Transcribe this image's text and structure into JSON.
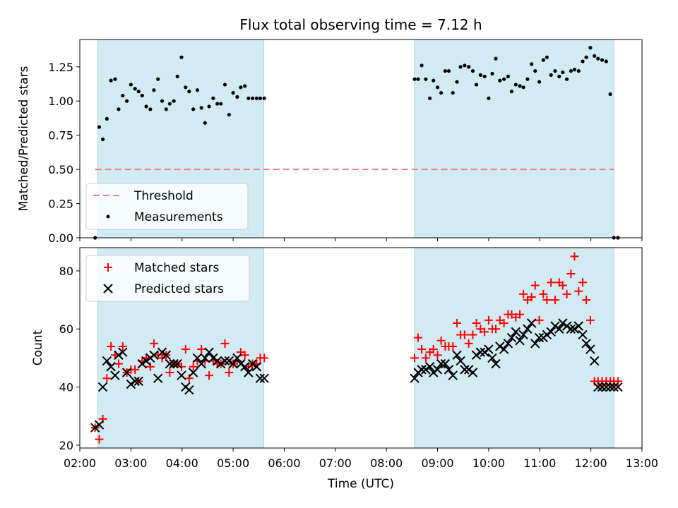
{
  "chart_data": [
    {
      "type": "scatter",
      "title": "Flux total observing time = 7.12 h",
      "ylabel": "Matched/Predicted stars",
      "ylim": [
        0.0,
        1.45
      ],
      "yticks": [
        "0.00",
        "0.25",
        "0.50",
        "0.75",
        "1.00",
        "1.25"
      ],
      "threshold": {
        "name": "Threshold",
        "value": 0.5,
        "x_start": 2.3,
        "x_end": 12.45,
        "color": "#f08080"
      },
      "shaded_regions": [
        [
          2.35,
          5.6
        ],
        [
          8.55,
          12.45
        ]
      ],
      "shade_color": "#add8e6",
      "series": [
        {
          "name": "Measurements",
          "marker": "dot",
          "color": "#000000",
          "x": [
            2.3,
            2.38,
            2.45,
            2.53,
            2.61,
            2.69,
            2.76,
            2.84,
            2.92,
            3.0,
            3.08,
            3.15,
            3.22,
            3.3,
            3.38,
            3.45,
            3.53,
            3.61,
            3.69,
            3.76,
            3.84,
            3.91,
            3.99,
            4.07,
            4.14,
            4.22,
            4.3,
            4.38,
            4.45,
            4.53,
            4.61,
            4.69,
            4.76,
            4.84,
            4.92,
            5.0,
            5.08,
            5.15,
            5.23,
            5.3,
            5.38,
            5.46,
            5.53,
            5.61,
            8.55,
            8.62,
            8.69,
            8.77,
            8.85,
            8.92,
            9.0,
            9.07,
            9.15,
            9.22,
            9.3,
            9.38,
            9.45,
            9.53,
            9.61,
            9.69,
            9.76,
            9.84,
            9.92,
            10.0,
            10.07,
            10.14,
            10.22,
            10.3,
            10.38,
            10.45,
            10.53,
            10.61,
            10.68,
            10.76,
            10.84,
            10.91,
            10.99,
            11.07,
            11.14,
            11.22,
            11.3,
            11.38,
            11.45,
            11.53,
            11.61,
            11.68,
            11.76,
            11.84,
            11.91,
            11.99,
            12.07,
            12.14,
            12.22,
            12.3,
            12.38,
            12.45,
            12.53
          ],
          "y": [
            0.0,
            0.81,
            0.72,
            0.87,
            1.15,
            1.16,
            0.94,
            1.04,
            1.0,
            1.12,
            1.09,
            1.07,
            1.04,
            0.96,
            0.94,
            1.08,
            1.16,
            1.0,
            0.94,
            0.98,
            1.0,
            1.18,
            1.32,
            1.1,
            1.07,
            0.94,
            1.08,
            0.95,
            0.84,
            0.96,
            1.02,
            0.98,
            0.98,
            1.12,
            0.9,
            1.06,
            1.03,
            1.1,
            1.11,
            1.02,
            1.02,
            1.02,
            1.02,
            1.02,
            1.16,
            1.16,
            1.26,
            1.16,
            1.02,
            1.15,
            1.1,
            1.06,
            1.22,
            1.22,
            1.06,
            1.14,
            1.25,
            1.26,
            1.25,
            1.22,
            1.12,
            1.19,
            1.18,
            1.02,
            1.2,
            1.31,
            1.15,
            1.16,
            1.18,
            1.07,
            1.12,
            1.11,
            1.1,
            1.16,
            1.27,
            1.22,
            1.14,
            1.3,
            1.32,
            1.19,
            1.22,
            1.18,
            1.21,
            1.16,
            1.22,
            1.23,
            1.22,
            1.29,
            1.32,
            1.39,
            1.33,
            1.31,
            1.3,
            1.29,
            1.05,
            0.0,
            0.0
          ]
        }
      ]
    },
    {
      "type": "scatter",
      "xlabel": "Time (UTC)",
      "ylabel": "Count",
      "xlim": [
        2.0,
        13.0
      ],
      "ylim": [
        19,
        88
      ],
      "xticks": [
        "02:00",
        "03:00",
        "04:00",
        "05:00",
        "06:00",
        "07:00",
        "08:00",
        "09:00",
        "10:00",
        "11:00",
        "12:00",
        "13:00"
      ],
      "yticks": [
        "20",
        "40",
        "60",
        "80"
      ],
      "shaded_regions": [
        [
          2.35,
          5.6
        ],
        [
          8.55,
          12.45
        ]
      ],
      "shade_color": "#add8e6",
      "series": [
        {
          "name": "Matched stars",
          "marker": "plus",
          "color": "#ff0000",
          "x": [
            2.3,
            2.38,
            2.45,
            2.53,
            2.61,
            2.69,
            2.76,
            2.84,
            2.92,
            3.0,
            3.08,
            3.15,
            3.22,
            3.3,
            3.38,
            3.45,
            3.53,
            3.61,
            3.69,
            3.76,
            3.84,
            3.91,
            3.99,
            4.07,
            4.14,
            4.22,
            4.3,
            4.38,
            4.45,
            4.53,
            4.61,
            4.69,
            4.76,
            4.84,
            4.92,
            5.0,
            5.08,
            5.15,
            5.23,
            5.3,
            5.38,
            5.46,
            5.53,
            5.61,
            8.55,
            8.62,
            8.69,
            8.77,
            8.85,
            8.92,
            9.0,
            9.07,
            9.15,
            9.22,
            9.3,
            9.38,
            9.45,
            9.53,
            9.61,
            9.69,
            9.76,
            9.84,
            9.92,
            10.0,
            10.07,
            10.14,
            10.22,
            10.3,
            10.38,
            10.45,
            10.53,
            10.61,
            10.68,
            10.76,
            10.84,
            10.91,
            10.99,
            11.07,
            11.14,
            11.22,
            11.3,
            11.38,
            11.45,
            11.53,
            11.61,
            11.68,
            11.76,
            11.84,
            11.91,
            11.99,
            12.07,
            12.14,
            12.22,
            12.3,
            12.38,
            12.45,
            12.53
          ],
          "y": [
            26,
            22,
            29,
            43,
            54,
            51,
            48,
            54,
            45,
            46,
            46,
            42,
            49,
            50,
            47,
            55,
            51,
            50,
            51,
            45,
            48,
            48,
            47,
            53,
            43,
            47,
            49,
            53,
            49,
            44,
            49,
            48,
            48,
            55,
            45,
            48,
            49,
            52,
            51,
            47,
            48,
            48,
            50,
            50,
            50,
            57,
            53,
            50,
            52,
            53,
            51,
            56,
            54,
            54,
            54,
            62,
            58,
            58,
            55,
            58,
            62,
            60,
            59,
            63,
            60,
            60,
            63,
            62,
            65,
            65,
            64,
            65,
            72,
            70,
            71,
            75,
            63,
            72,
            70,
            76,
            70,
            76,
            75,
            72,
            79,
            85,
            73,
            76,
            70,
            63,
            42,
            42,
            42,
            42,
            42,
            42,
            42
          ]
        },
        {
          "name": "Predicted stars",
          "marker": "x",
          "color": "#000000",
          "x": [
            2.3,
            2.38,
            2.45,
            2.53,
            2.61,
            2.69,
            2.76,
            2.84,
            2.92,
            3.0,
            3.08,
            3.15,
            3.22,
            3.3,
            3.38,
            3.45,
            3.53,
            3.61,
            3.69,
            3.76,
            3.84,
            3.91,
            3.99,
            4.07,
            4.14,
            4.22,
            4.3,
            4.38,
            4.45,
            4.53,
            4.61,
            4.69,
            4.76,
            4.84,
            4.92,
            5.0,
            5.08,
            5.15,
            5.23,
            5.3,
            5.38,
            5.46,
            5.53,
            5.61,
            8.55,
            8.62,
            8.69,
            8.77,
            8.85,
            8.92,
            9.0,
            9.07,
            9.15,
            9.22,
            9.3,
            9.38,
            9.45,
            9.53,
            9.61,
            9.69,
            9.76,
            9.84,
            9.92,
            10.0,
            10.07,
            10.14,
            10.22,
            10.3,
            10.38,
            10.45,
            10.53,
            10.61,
            10.68,
            10.76,
            10.84,
            10.91,
            10.99,
            11.07,
            11.14,
            11.22,
            11.3,
            11.38,
            11.45,
            11.53,
            11.61,
            11.68,
            11.76,
            11.84,
            11.91,
            11.99,
            12.07,
            12.14,
            12.22,
            12.3,
            12.38,
            12.45,
            12.53
          ],
          "y": [
            26,
            27,
            40,
            49,
            47,
            44,
            51,
            52,
            45,
            41,
            42,
            42,
            48,
            49,
            50,
            51,
            43,
            52,
            51,
            48,
            48,
            48,
            44,
            40,
            39,
            45,
            50,
            48,
            50,
            52,
            50,
            49,
            48,
            49,
            49,
            48,
            50,
            48,
            47,
            45,
            48,
            47,
            43,
            43,
            43,
            45,
            46,
            46,
            47,
            45,
            46,
            48,
            48,
            46,
            44,
            51,
            49,
            46,
            46,
            45,
            51,
            52,
            52,
            53,
            50,
            48,
            54,
            53,
            55,
            57,
            59,
            56,
            58,
            60,
            62,
            55,
            57,
            57,
            58,
            59,
            61,
            60,
            62,
            61,
            60,
            60,
            61,
            58,
            55,
            53,
            49,
            40,
            40,
            40,
            40,
            40,
            40
          ]
        }
      ]
    }
  ]
}
